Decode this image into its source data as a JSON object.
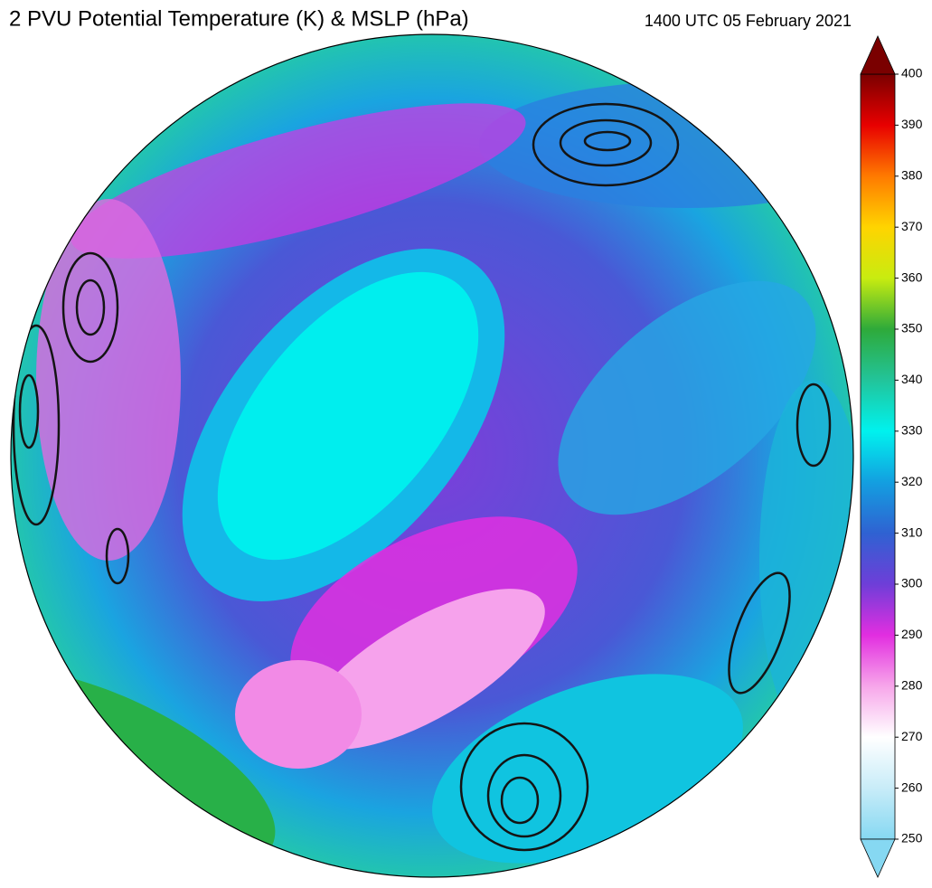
{
  "header": {
    "title": "2 PVU Potential Temperature (K) & MSLP (hPa)",
    "timestamp": "1400 UTC 05 February 2021"
  },
  "colorbar": {
    "range": [
      250,
      400
    ],
    "ticks": [
      250,
      260,
      270,
      280,
      290,
      300,
      310,
      320,
      330,
      340,
      350,
      360,
      370,
      380,
      390,
      400
    ],
    "colors": [
      "#86d8f2",
      "#c8ecf8",
      "#ffffff",
      "#f7a6ea",
      "#e22ee0",
      "#6e3ed8",
      "#2f62d2",
      "#139fe0",
      "#00f2ee",
      "#22c49a",
      "#2eaa3a",
      "#c8ec10",
      "#ffd400",
      "#ff7a00",
      "#e80000",
      "#7a0000"
    ]
  }
}
